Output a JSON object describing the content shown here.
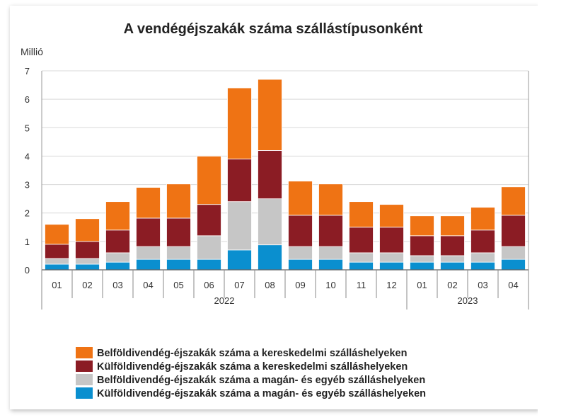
{
  "chart_data": {
    "type": "bar",
    "stacked": true,
    "title": "A vendégéjszakák száma szállástípusonként",
    "ylabel": "Millió",
    "ylim": [
      0,
      7
    ],
    "yticks": [
      0,
      1,
      2,
      3,
      4,
      5,
      6,
      7
    ],
    "grid": true,
    "legend_position": "bottom",
    "categories": [
      "01",
      "02",
      "03",
      "04",
      "05",
      "06",
      "07",
      "08",
      "09",
      "10",
      "11",
      "12",
      "01",
      "02",
      "03",
      "04"
    ],
    "groups": [
      {
        "label": "2022",
        "count": 12
      },
      {
        "label": "2023",
        "count": 4
      }
    ],
    "series": [
      {
        "name": "Külföldivendég-éjszakák száma a magán- és egyéb szálláshelyeken",
        "color": "#0a8fcf",
        "values": [
          0.2,
          0.2,
          0.27,
          0.37,
          0.37,
          0.37,
          0.7,
          0.88,
          0.37,
          0.37,
          0.27,
          0.27,
          0.27,
          0.27,
          0.27,
          0.37
        ]
      },
      {
        "name": "Belföldivendég-éjszakák száma a magán- és egyéb szálláshelyeken",
        "color": "#c6c6c6",
        "values": [
          0.2,
          0.2,
          0.33,
          0.45,
          0.45,
          0.83,
          1.7,
          1.62,
          0.45,
          0.45,
          0.33,
          0.33,
          0.23,
          0.23,
          0.33,
          0.45
        ]
      },
      {
        "name": "Külföldivendég-éjszakák száma a kereskedelmi szálláshelyeken",
        "color": "#8b1c24",
        "values": [
          0.5,
          0.6,
          0.8,
          1.0,
          1.0,
          1.1,
          1.5,
          1.7,
          1.1,
          1.1,
          0.9,
          0.9,
          0.7,
          0.7,
          0.8,
          1.1
        ]
      },
      {
        "name": "Belföldivendég-éjszakák száma a kereskedelmi szálláshelyeken",
        "color": "#ef7314",
        "values": [
          0.7,
          0.8,
          1.0,
          1.08,
          1.2,
          1.7,
          2.5,
          2.5,
          1.2,
          1.1,
          0.9,
          0.8,
          0.7,
          0.7,
          0.8,
          1.0
        ]
      }
    ],
    "legend_order": [
      3,
      2,
      1,
      0
    ]
  }
}
